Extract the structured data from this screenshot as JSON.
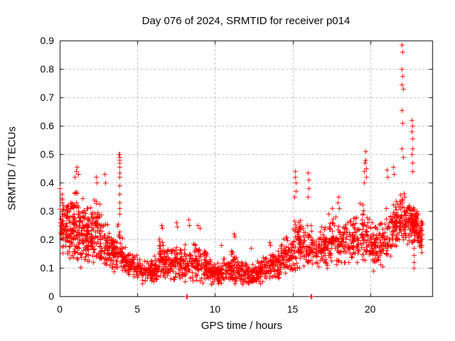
{
  "chart_data": {
    "type": "scatter",
    "title": "Day 076 of 2024, SRMTID for receiver p014",
    "xlabel": "GPS time / hours",
    "ylabel": "SRMTID / TECUs",
    "xlim": [
      0,
      24
    ],
    "ylim": [
      0,
      0.9
    ],
    "xticks": {
      "values": [
        0,
        5,
        10,
        15,
        20
      ],
      "labels": [
        "0",
        "5",
        "10",
        "15",
        "20"
      ]
    },
    "yticks": {
      "values": [
        0,
        0.1,
        0.2,
        0.3,
        0.4,
        0.5,
        0.6,
        0.7,
        0.8,
        0.9
      ],
      "labels": [
        "0",
        "0.1",
        "0.2",
        "0.3",
        "0.4",
        "0.5",
        "0.6",
        "0.7",
        "0.8",
        "0.9"
      ]
    },
    "grid": true,
    "grid_style": "dashed",
    "legend_position": "none",
    "series": [
      {
        "name": "SRMTID",
        "marker": "plus",
        "color": "#ff0000"
      }
    ],
    "grid_color": "#b0b0b0",
    "frame_color": "#000000",
    "background_color": "#ffffff",
    "description": "Dense red plus-marker scatter of SRMTID vs GPS time. Elevated 0.1-0.45 TECUs during hours 0-4 (isolated spike to 0.50 near hour 3.85), quiet baseline ~0.03-0.15 for hours 5-14 (isolated zero-value samples near hours 8.2 and 16.2), rising activity after hour 15 with spikes near hours 15.2, 16.0, 19.7 and a tall excursion reaching 0.885 near hour 22.05; data ends near hour 23.35.",
    "band_format": [
      "t_start",
      "t_end",
      "y_low_start",
      "y_low_end",
      "y_high_start",
      "y_high_end",
      "n_points"
    ],
    "density_bands": [
      [
        0.0,
        0.7,
        0.12,
        0.1,
        0.38,
        0.36,
        90
      ],
      [
        0.7,
        1.5,
        0.1,
        0.1,
        0.42,
        0.36,
        110
      ],
      [
        1.5,
        2.2,
        0.1,
        0.1,
        0.36,
        0.33,
        90
      ],
      [
        2.2,
        2.7,
        0.1,
        0.09,
        0.42,
        0.3,
        60
      ],
      [
        2.7,
        3.7,
        0.09,
        0.08,
        0.28,
        0.22,
        100
      ],
      [
        3.7,
        4.1,
        0.08,
        0.07,
        0.28,
        0.2,
        40
      ],
      [
        4.1,
        5.2,
        0.07,
        0.06,
        0.18,
        0.14,
        90
      ],
      [
        5.2,
        6.3,
        0.03,
        0.04,
        0.13,
        0.15,
        90
      ],
      [
        6.3,
        7.1,
        0.05,
        0.05,
        0.22,
        0.18,
        80
      ],
      [
        7.1,
        8.6,
        0.04,
        0.05,
        0.18,
        0.2,
        120
      ],
      [
        8.6,
        9.6,
        0.05,
        0.04,
        0.22,
        0.15,
        90
      ],
      [
        9.6,
        11.0,
        0.03,
        0.03,
        0.14,
        0.14,
        120
      ],
      [
        11.0,
        11.5,
        0.03,
        0.03,
        0.18,
        0.14,
        50
      ],
      [
        11.5,
        13.0,
        0.02,
        0.04,
        0.13,
        0.13,
        130
      ],
      [
        13.0,
        14.2,
        0.05,
        0.06,
        0.15,
        0.17,
        100
      ],
      [
        14.2,
        15.0,
        0.06,
        0.08,
        0.2,
        0.26,
        70
      ],
      [
        15.0,
        15.5,
        0.08,
        0.09,
        0.33,
        0.28,
        50
      ],
      [
        15.5,
        16.3,
        0.08,
        0.09,
        0.28,
        0.26,
        60
      ],
      [
        16.3,
        17.3,
        0.08,
        0.1,
        0.24,
        0.26,
        80
      ],
      [
        17.3,
        18.3,
        0.1,
        0.1,
        0.3,
        0.28,
        80
      ],
      [
        18.3,
        19.3,
        0.1,
        0.11,
        0.27,
        0.3,
        80
      ],
      [
        19.3,
        20.0,
        0.1,
        0.1,
        0.36,
        0.28,
        60
      ],
      [
        20.0,
        21.0,
        0.05,
        0.1,
        0.26,
        0.28,
        90
      ],
      [
        21.0,
        21.7,
        0.1,
        0.14,
        0.32,
        0.34,
        70
      ],
      [
        21.7,
        22.4,
        0.15,
        0.16,
        0.38,
        0.36,
        80
      ],
      [
        22.4,
        23.0,
        0.17,
        0.18,
        0.34,
        0.33,
        80
      ],
      [
        23.0,
        23.35,
        0.18,
        0.12,
        0.32,
        0.28,
        40
      ]
    ],
    "outlier_points": [
      [
        0.02,
        0.38
      ],
      [
        0.95,
        0.42
      ],
      [
        1.05,
        0.44
      ],
      [
        1.1,
        0.455
      ],
      [
        1.18,
        0.43
      ],
      [
        2.35,
        0.42
      ],
      [
        2.4,
        0.4
      ],
      [
        2.9,
        0.43
      ],
      [
        2.92,
        0.4
      ],
      [
        3.82,
        0.5
      ],
      [
        3.85,
        0.5
      ],
      [
        3.84,
        0.49
      ],
      [
        3.86,
        0.48
      ],
      [
        3.83,
        0.47
      ],
      [
        3.85,
        0.455
      ],
      [
        3.84,
        0.435
      ],
      [
        3.86,
        0.42
      ],
      [
        3.85,
        0.39
      ],
      [
        3.83,
        0.36
      ],
      [
        3.85,
        0.33
      ],
      [
        3.84,
        0.31
      ],
      [
        3.86,
        0.29
      ],
      [
        6.55,
        0.25
      ],
      [
        6.6,
        0.24
      ],
      [
        7.5,
        0.26
      ],
      [
        7.55,
        0.245
      ],
      [
        8.3,
        0.27
      ],
      [
        8.35,
        0.25
      ],
      [
        8.9,
        0.25
      ],
      [
        9.0,
        0.24
      ],
      [
        10.4,
        0.18
      ],
      [
        11.2,
        0.22
      ],
      [
        11.25,
        0.21
      ],
      [
        12.3,
        0.17
      ],
      [
        13.5,
        0.19
      ],
      [
        13.55,
        0.18
      ],
      [
        8.15,
        0.0
      ],
      [
        8.22,
        0.0
      ],
      [
        16.15,
        0.0
      ],
      [
        16.22,
        0.0
      ],
      [
        15.1,
        0.35
      ],
      [
        15.15,
        0.42
      ],
      [
        15.18,
        0.44
      ],
      [
        15.2,
        0.4
      ],
      [
        15.22,
        0.37
      ],
      [
        15.98,
        0.35
      ],
      [
        16.0,
        0.435
      ],
      [
        16.02,
        0.41
      ],
      [
        16.05,
        0.38
      ],
      [
        17.55,
        0.31
      ],
      [
        17.9,
        0.33
      ],
      [
        17.95,
        0.35
      ],
      [
        18.0,
        0.31
      ],
      [
        19.6,
        0.44
      ],
      [
        19.62,
        0.4
      ],
      [
        19.65,
        0.47
      ],
      [
        19.68,
        0.51
      ],
      [
        19.7,
        0.48
      ],
      [
        19.72,
        0.45
      ],
      [
        19.75,
        0.42
      ],
      [
        21.05,
        0.445
      ],
      [
        21.1,
        0.42
      ],
      [
        21.5,
        0.455
      ],
      [
        21.52,
        0.43
      ],
      [
        22.05,
        0.885
      ],
      [
        22.08,
        0.86
      ],
      [
        22.05,
        0.8
      ],
      [
        22.08,
        0.775
      ],
      [
        22.05,
        0.745
      ],
      [
        22.1,
        0.73
      ],
      [
        22.05,
        0.655
      ],
      [
        22.08,
        0.61
      ],
      [
        22.05,
        0.52
      ],
      [
        22.1,
        0.49
      ],
      [
        22.68,
        0.62
      ],
      [
        22.7,
        0.6
      ],
      [
        22.68,
        0.58
      ],
      [
        22.72,
        0.555
      ],
      [
        22.7,
        0.52
      ],
      [
        22.68,
        0.5
      ],
      [
        22.72,
        0.47
      ],
      [
        22.7,
        0.44
      ],
      [
        22.8,
        0.25
      ],
      [
        22.8,
        0.225
      ],
      [
        22.8,
        0.2
      ],
      [
        22.8,
        0.17
      ],
      [
        22.8,
        0.145
      ],
      [
        22.8,
        0.12
      ],
      [
        22.8,
        0.1
      ]
    ]
  }
}
